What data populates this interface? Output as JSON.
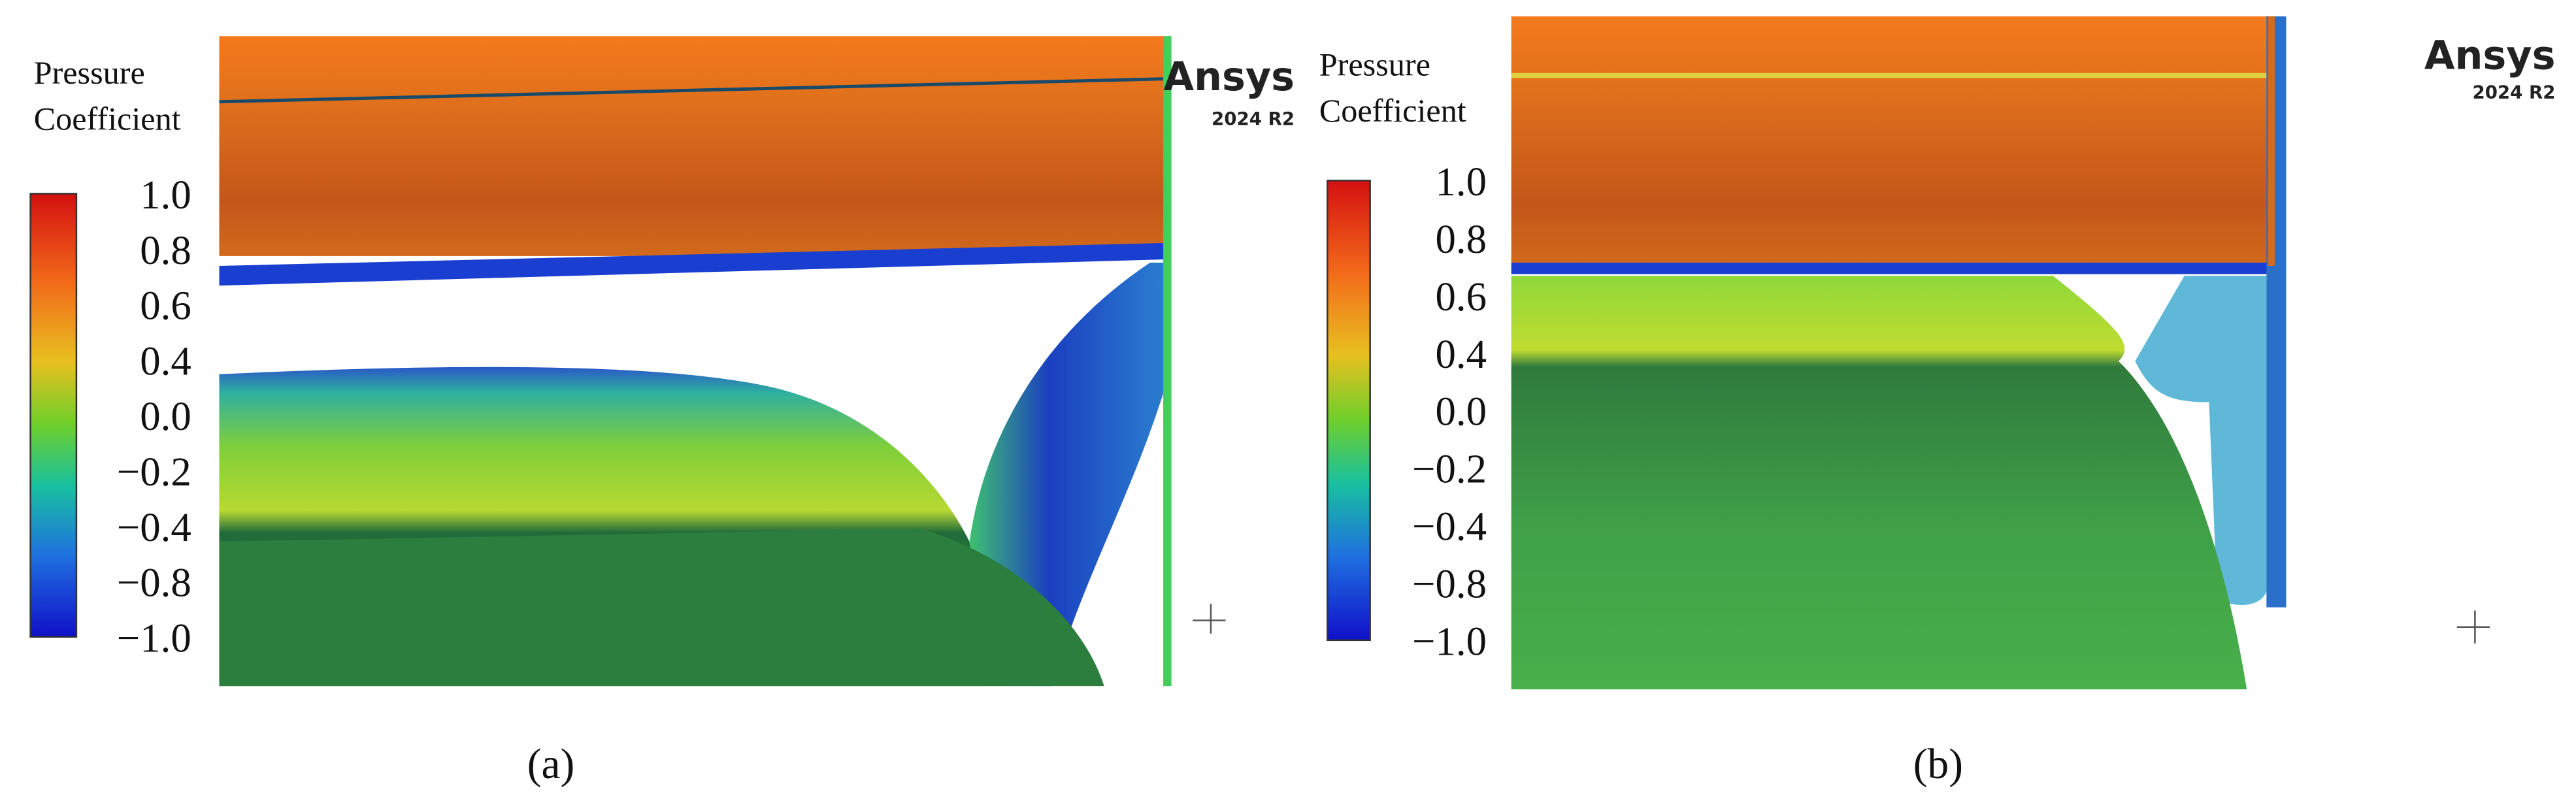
{
  "panels": [
    {
      "legend": {
        "title_lines": [
          "Pressure",
          "Coefficient"
        ],
        "tick_labels": [
          "1.0",
          "0.8",
          "0.6",
          "0.4",
          "0.0",
          "−0.2",
          "−0.4",
          "−0.8",
          "−1.0"
        ]
      },
      "logo": {
        "name": "Ansys",
        "version": "2024 R2"
      },
      "caption": "(a)"
    },
    {
      "legend": {
        "title_lines": [
          "Pressure",
          "Coefficient"
        ],
        "tick_labels": [
          "1.0",
          "0.8",
          "0.6",
          "0.4",
          "0.0",
          "−0.2",
          "−0.4",
          "−0.8",
          "−1.0"
        ]
      },
      "logo": {
        "name": "Ansys",
        "version": "2024 R2"
      },
      "caption": "(b)"
    }
  ]
}
